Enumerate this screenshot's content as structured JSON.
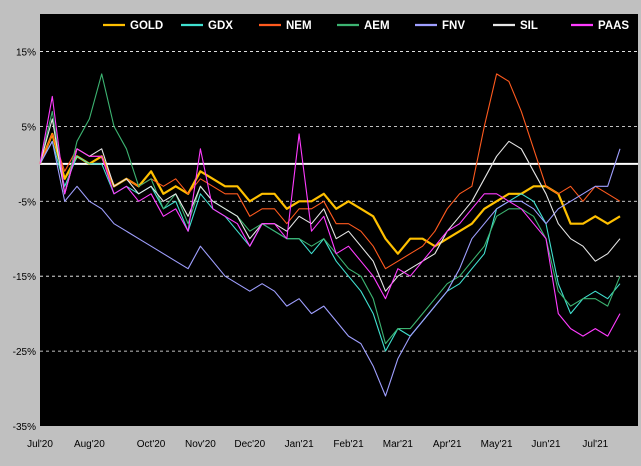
{
  "colors": {
    "background": "#000000",
    "frame": "#c0c0c0",
    "grid": "#ffffff",
    "zero_line": "#ffffff"
  },
  "chart_data": {
    "type": "line",
    "title": "",
    "xlabel": "",
    "ylabel": "",
    "ylim": [
      -35,
      20
    ],
    "y_ticks": [
      15,
      5,
      -5,
      -15,
      -25,
      -35
    ],
    "y_tick_labels": [
      "15%",
      "5%",
      "-5%",
      "-15%",
      "-25%",
      "-35%"
    ],
    "reference_line": 0,
    "x_ticks": [
      "Jul'20",
      "Aug'20",
      "Oct'20",
      "Nov'20",
      "Dec'20",
      "Jan'21",
      "Feb'21",
      "Mar'21",
      "Apr'21",
      "May'21",
      "Jun'21",
      "Jul'21"
    ],
    "grid": "horizontal dashed",
    "legend_position": "top",
    "x": [
      "Jul'20",
      "",
      "",
      "",
      "Aug'20",
      "",
      "",
      "",
      "",
      "Oct'20",
      "",
      "",
      "",
      "Nov'20",
      "",
      "",
      "",
      "Dec'20",
      "",
      "",
      "",
      "Jan'21",
      "",
      "",
      "",
      "Feb'21",
      "",
      "",
      "",
      "Mar'21",
      "",
      "",
      "",
      "Apr'21",
      "",
      "",
      "",
      "May'21",
      "",
      "",
      "",
      "Jun'21",
      "",
      "",
      "",
      "Jul'21",
      "",
      ""
    ],
    "series": [
      {
        "name": "GOLD",
        "color": "#ffc000",
        "width": 2.2,
        "values": [
          0,
          4,
          -2,
          1,
          0,
          1,
          -3,
          -2,
          -3,
          -1,
          -4,
          -3,
          -4,
          -1,
          -2,
          -3,
          -3,
          -5,
          -4,
          -4,
          -6,
          -5,
          -5,
          -4,
          -6,
          -5,
          -6,
          -7,
          -10,
          -12,
          -10,
          -10,
          -11,
          -10,
          -9,
          -8,
          -6,
          -5,
          -4,
          -4,
          -3,
          -3,
          -4,
          -8,
          -8,
          -7,
          -8,
          -7
        ]
      },
      {
        "name": "GDX",
        "color": "#40e0d0",
        "width": 1.1,
        "values": [
          0,
          3,
          -3,
          1,
          0,
          0,
          -4,
          -3,
          -4,
          -3,
          -6,
          -5,
          -9,
          -4,
          -6,
          -7,
          -9,
          -11,
          -8,
          -9,
          -10,
          -10,
          -12,
          -10,
          -13,
          -15,
          -17,
          -20,
          -25,
          -22,
          -23,
          -21,
          -19,
          -17,
          -16,
          -14,
          -12,
          -6,
          -5,
          -4,
          -5,
          -8,
          -16,
          -20,
          -18,
          -17,
          -18,
          -16
        ]
      },
      {
        "name": "NEM",
        "color": "#ff5a1e",
        "width": 1.1,
        "values": [
          0,
          4,
          -1,
          2,
          1,
          1,
          -3,
          -2,
          -3,
          -2,
          -3,
          -2,
          -4,
          -2,
          -3,
          -4,
          -4,
          -7,
          -6,
          -6,
          -8,
          -6,
          -6,
          -5,
          -8,
          -8,
          -9,
          -11,
          -14,
          -13,
          -12,
          -11,
          -9,
          -6,
          -4,
          -3,
          5,
          12,
          11,
          7,
          2,
          -3,
          -4,
          -3,
          -5,
          -3,
          -4,
          -5
        ]
      },
      {
        "name": "AEM",
        "color": "#3cb371",
        "width": 1.1,
        "values": [
          0,
          7,
          -4,
          3,
          6,
          12,
          5,
          2,
          -3,
          -2,
          -6,
          -4,
          -8,
          -3,
          -5,
          -6,
          -7,
          -9,
          -8,
          -9,
          -10,
          -10,
          -11,
          -10,
          -12,
          -14,
          -15,
          -18,
          -24,
          -22,
          -22,
          -20,
          -18,
          -16,
          -15,
          -13,
          -11,
          -7,
          -6,
          -6,
          -7,
          -10,
          -17,
          -19,
          -18,
          -18,
          -19,
          -15
        ]
      },
      {
        "name": "FNV",
        "color": "#9f9fff",
        "width": 1.1,
        "values": [
          0,
          3,
          -5,
          -3,
          -5,
          -6,
          -8,
          -9,
          -10,
          -11,
          -12,
          -13,
          -14,
          -11,
          -13,
          -15,
          -16,
          -17,
          -16,
          -17,
          -19,
          -18,
          -20,
          -19,
          -21,
          -23,
          -24,
          -27,
          -31,
          -26,
          -23,
          -21,
          -19,
          -17,
          -14,
          -10,
          -8,
          -6,
          -5,
          -5,
          -6,
          -8,
          -6,
          -5,
          -4,
          -3,
          -3,
          2
        ]
      },
      {
        "name": "SIL",
        "color": "#e6e6e6",
        "width": 1.1,
        "values": [
          0,
          6,
          -4,
          2,
          1,
          2,
          -3,
          -2,
          -4,
          -3,
          -5,
          -4,
          -7,
          -3,
          -5,
          -6,
          -7,
          -10,
          -8,
          -8,
          -9,
          -7,
          -8,
          -6,
          -10,
          -9,
          -11,
          -13,
          -17,
          -15,
          -14,
          -13,
          -12,
          -9,
          -7,
          -5,
          -2,
          1,
          3,
          2,
          -1,
          -4,
          -8,
          -10,
          -11,
          -13,
          -12,
          -10
        ]
      },
      {
        "name": "PAAS",
        "color": "#ff3cff",
        "width": 1.1,
        "values": [
          0,
          9,
          -4,
          2,
          1,
          1,
          -4,
          -3,
          -5,
          -4,
          -7,
          -6,
          -9,
          2,
          -6,
          -7,
          -8,
          -11,
          -8,
          -8,
          -10,
          4,
          -9,
          -7,
          -12,
          -11,
          -13,
          -15,
          -18,
          -14,
          -15,
          -13,
          -11,
          -9,
          -8,
          -6,
          -4,
          -4,
          -5,
          -6,
          -8,
          -10,
          -20,
          -22,
          -23,
          -22,
          -23,
          -20
        ]
      }
    ]
  }
}
